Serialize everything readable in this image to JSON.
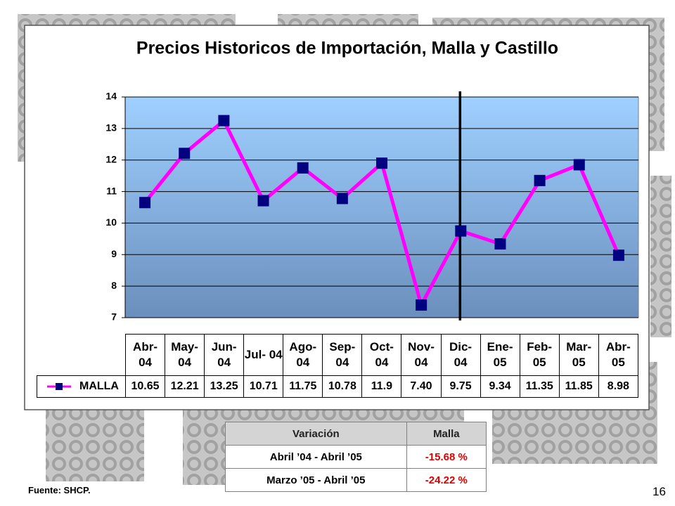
{
  "chart_data": {
    "type": "line",
    "title": "Precios Historicos de Importación, Malla y Castillo",
    "categories": [
      "Abr- 04",
      "May- 04",
      "Jun- 04",
      "Jul- 04",
      "Ago- 04",
      "Sep- 04",
      "Oct- 04",
      "Nov- 04",
      "Dic- 04",
      "Ene- 05",
      "Feb- 05",
      "Mar- 05",
      "Abr- 05"
    ],
    "series": [
      {
        "name": "MALLA",
        "color": "#ff00ff",
        "marker_color": "#000080",
        "values": [
          10.65,
          12.21,
          13.25,
          10.71,
          11.75,
          10.78,
          11.9,
          7.4,
          9.75,
          9.34,
          11.35,
          11.85,
          8.98
        ],
        "value_labels": [
          "10.65",
          "12.21",
          "13.25",
          "10.71",
          "11.75",
          "10.78",
          "11.9",
          "7.40",
          "9.75",
          "9.34",
          "11.35",
          "11.85",
          "8.98"
        ]
      }
    ],
    "ylim": [
      7,
      14
    ],
    "yticks": [
      7,
      8,
      9,
      10,
      11,
      12,
      13,
      14
    ],
    "grid": true
  },
  "variation_table": {
    "header": [
      "Variación",
      "Malla"
    ],
    "rows": [
      [
        "Abril ’04 - Abril ’05",
        "-15.68 %"
      ],
      [
        "Marzo ’05 - Abril ’05",
        "-24.22 %"
      ]
    ]
  },
  "footer": {
    "source": "Fuente: SHCP.",
    "page": "16"
  }
}
